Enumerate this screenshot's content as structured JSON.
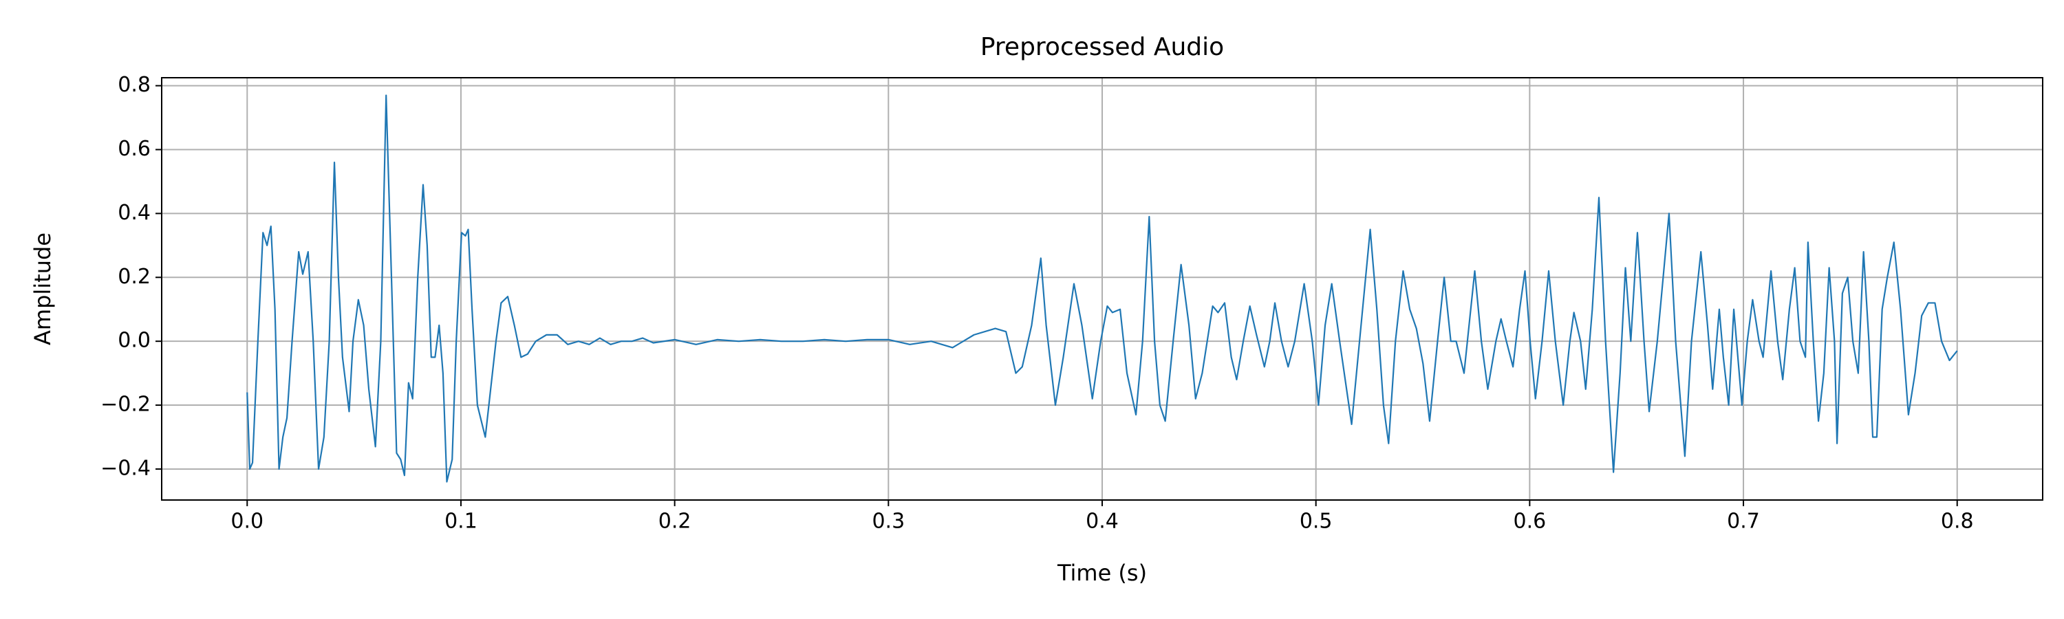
{
  "chart_data": {
    "type": "line",
    "title": "Preprocessed Audio",
    "x_label": "Time (s)",
    "y_label": "Amplitude",
    "color": "#1f77b4",
    "grid": true,
    "xlim": [
      -0.04,
      0.84
    ],
    "ylim": [
      -0.497,
      0.825
    ],
    "xticks": [
      {
        "value": 0,
        "label": "0.0"
      },
      0.1,
      0.2,
      0.3,
      0.4,
      0.5,
      0.6,
      0.7,
      0.8
    ],
    "yticks": [
      {
        "value": -0.4,
        "label": "−0.4"
      },
      {
        "value": -0.2,
        "label": "−0.2"
      },
      {
        "value": 0,
        "label": "0.0"
      },
      0.2,
      0.4,
      0.6,
      0.8
    ],
    "x": [
      0,
      0.0012,
      0.0025,
      0.005,
      0.0074,
      0.0093,
      0.0111,
      0.013,
      0.0149,
      0.0167,
      0.0186,
      0.021,
      0.0241,
      0.026,
      0.0285,
      0.0309,
      0.0334,
      0.0359,
      0.0384,
      0.0408,
      0.0427,
      0.0446,
      0.0477,
      0.0495,
      0.052,
      0.0545,
      0.0569,
      0.06,
      0.0625,
      0.065,
      0.0675,
      0.0699,
      0.0718,
      0.0736,
      0.0755,
      0.0774,
      0.0798,
      0.0823,
      0.0842,
      0.0861,
      0.0879,
      0.0898,
      0.0916,
      0.0934,
      0.0959,
      0.0978,
      0.1003,
      0.1021,
      0.1034,
      0.1052,
      0.1077,
      0.1114,
      0.1139,
      0.1164,
      0.1188,
      0.1219,
      0.125,
      0.1281,
      0.1312,
      0.135,
      0.14,
      0.145,
      0.15,
      0.155,
      0.16,
      0.165,
      0.17,
      0.175,
      0.18,
      0.185,
      0.19,
      0.2,
      0.21,
      0.22,
      0.23,
      0.24,
      0.25,
      0.26,
      0.27,
      0.28,
      0.29,
      0.3,
      0.31,
      0.32,
      0.33,
      0.34,
      0.35,
      0.355,
      0.3596,
      0.3626,
      0.367,
      0.3713,
      0.3738,
      0.3781,
      0.3818,
      0.3868,
      0.3905,
      0.3954,
      0.3993,
      0.4024,
      0.4048,
      0.4084,
      0.4116,
      0.4158,
      0.4189,
      0.422,
      0.4245,
      0.427,
      0.4295,
      0.4332,
      0.4369,
      0.4406,
      0.4437,
      0.4468,
      0.4517,
      0.4542,
      0.4573,
      0.4604,
      0.4629,
      0.466,
      0.4691,
      0.4722,
      0.4759,
      0.4784,
      0.4808,
      0.4839,
      0.487,
      0.4901,
      0.4945,
      0.4983,
      0.5012,
      0.5043,
      0.5074,
      0.5111,
      0.5167,
      0.5204,
      0.5254,
      0.5285,
      0.5316,
      0.534,
      0.5372,
      0.5408,
      0.5439,
      0.547,
      0.5501,
      0.5532,
      0.5569,
      0.56,
      0.5631,
      0.5656,
      0.5693,
      0.5743,
      0.5774,
      0.5804,
      0.5842,
      0.5866,
      0.5891,
      0.5922,
      0.5953,
      0.5978,
      0.6002,
      0.6027,
      0.6058,
      0.6089,
      0.612,
      0.6157,
      0.6188,
      0.6207,
      0.6238,
      0.6262,
      0.6293,
      0.6324,
      0.6355,
      0.6392,
      0.6423,
      0.6448,
      0.6473,
      0.6504,
      0.6535,
      0.6559,
      0.6597,
      0.6652,
      0.6683,
      0.6726,
      0.6757,
      0.6801,
      0.6832,
      0.6856,
      0.6887,
      0.6906,
      0.6931,
      0.6955,
      0.6993,
      0.7018,
      0.7043,
      0.7073,
      0.7092,
      0.7129,
      0.716,
      0.7184,
      0.7215,
      0.724,
      0.7265,
      0.729,
      0.7302,
      0.7327,
      0.7351,
      0.7376,
      0.7401,
      0.7426,
      0.7438,
      0.7463,
      0.7488,
      0.7512,
      0.7537,
      0.7562,
      0.7587,
      0.7605,
      0.7624,
      0.7649,
      0.7673,
      0.7704,
      0.7735,
      0.7772,
      0.7803,
      0.7834,
      0.7865,
      0.7896,
      0.7927,
      0.7964,
      0.8
    ],
    "values": [
      -0.16,
      -0.4,
      -0.38,
      0.0,
      0.34,
      0.3,
      0.36,
      0.1,
      -0.4,
      -0.3,
      -0.24,
      0.0,
      0.28,
      0.21,
      0.28,
      0.0,
      -0.4,
      -0.3,
      0.0,
      0.56,
      0.2,
      -0.05,
      -0.22,
      0.0,
      0.13,
      0.05,
      -0.15,
      -0.33,
      0.0,
      0.77,
      0.2,
      -0.35,
      -0.37,
      -0.42,
      -0.13,
      -0.18,
      0.2,
      0.49,
      0.3,
      -0.05,
      -0.05,
      0.05,
      -0.1,
      -0.44,
      -0.37,
      0.0,
      0.34,
      0.33,
      0.35,
      0.1,
      -0.2,
      -0.3,
      -0.15,
      0.0,
      0.12,
      0.14,
      0.05,
      -0.05,
      -0.04,
      0.0,
      0.02,
      0.02,
      -0.01,
      0.0,
      -0.01,
      0.01,
      -0.01,
      0.0,
      0.0,
      0.01,
      -0.005,
      0.005,
      -0.01,
      0.005,
      0.0,
      0.005,
      0.0,
      0.0,
      0.005,
      0.0,
      0.005,
      0.005,
      -0.01,
      0.0,
      -0.02,
      0.02,
      0.04,
      0.03,
      -0.1,
      -0.08,
      0.05,
      0.26,
      0.05,
      -0.2,
      -0.05,
      0.18,
      0.05,
      -0.18,
      0.0,
      0.11,
      0.09,
      0.1,
      -0.1,
      -0.23,
      0.0,
      0.39,
      0.0,
      -0.2,
      -0.25,
      0.0,
      0.24,
      0.05,
      -0.18,
      -0.1,
      0.11,
      0.09,
      0.12,
      -0.05,
      -0.12,
      0.0,
      0.11,
      0.02,
      -0.08,
      0.0,
      0.12,
      0.0,
      -0.08,
      0.0,
      0.18,
      0.0,
      -0.2,
      0.05,
      0.18,
      0.0,
      -0.26,
      0.0,
      0.35,
      0.1,
      -0.2,
      -0.32,
      0.0,
      0.22,
      0.1,
      0.04,
      -0.07,
      -0.25,
      0.0,
      0.2,
      0.0,
      0.0,
      -0.1,
      0.22,
      0.0,
      -0.15,
      0.0,
      0.07,
      0.0,
      -0.08,
      0.1,
      0.22,
      0.0,
      -0.18,
      0.0,
      0.22,
      0.0,
      -0.2,
      0.0,
      0.09,
      0.0,
      -0.15,
      0.1,
      0.45,
      0.0,
      -0.41,
      -0.1,
      0.23,
      0.0,
      0.34,
      0.0,
      -0.22,
      0.0,
      0.4,
      0.0,
      -0.36,
      0.0,
      0.28,
      0.05,
      -0.15,
      0.1,
      -0.05,
      -0.2,
      0.1,
      -0.2,
      0.0,
      0.13,
      0.0,
      -0.05,
      0.22,
      0.0,
      -0.12,
      0.1,
      0.23,
      0.0,
      -0.05,
      0.31,
      0.0,
      -0.25,
      -0.1,
      0.23,
      0.0,
      -0.32,
      0.15,
      0.2,
      0.0,
      -0.1,
      0.28,
      0.0,
      -0.3,
      -0.3,
      0.1,
      0.2,
      0.31,
      0.1,
      -0.23,
      -0.1,
      0.08,
      0.12,
      0.12,
      0.0,
      -0.06,
      -0.03
    ]
  }
}
